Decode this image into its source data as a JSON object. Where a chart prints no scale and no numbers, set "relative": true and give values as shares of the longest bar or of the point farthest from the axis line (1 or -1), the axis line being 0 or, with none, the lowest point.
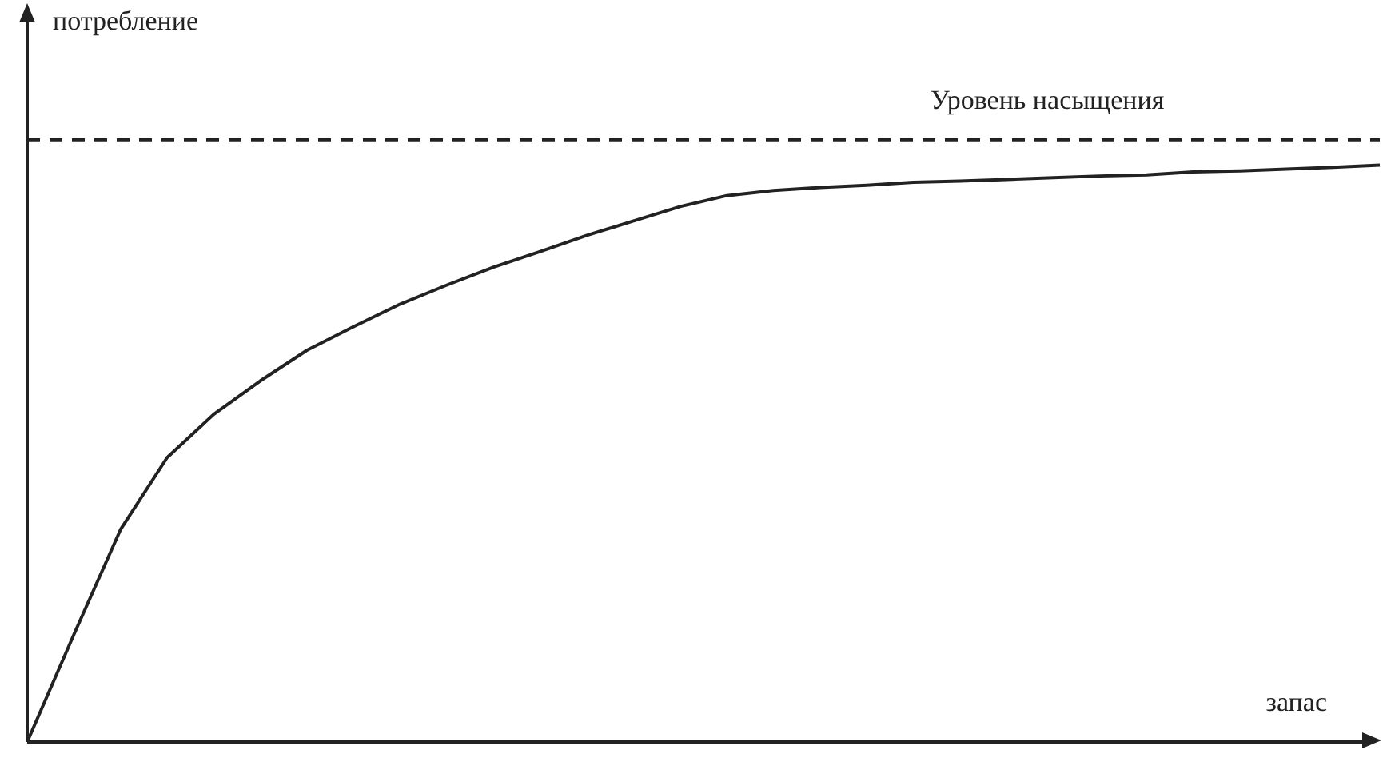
{
  "chart_data": {
    "type": "line",
    "relative": true,
    "xlabel": "запас",
    "ylabel": "потребление",
    "categories": [
      null,
      null,
      null,
      null,
      null,
      null,
      null,
      null,
      null,
      null,
      null,
      null,
      null,
      null,
      null,
      null,
      null,
      null,
      null,
      null,
      null,
      null,
      null,
      null,
      null,
      null,
      null,
      null,
      null,
      null
    ],
    "series": [
      {
        "color": "#222222",
        "values": [
          0,
          0.186,
          0.368,
          0.493,
          0.568,
          0.626,
          0.679,
          0.72,
          0.759,
          0.792,
          0.823,
          0.85,
          0.878,
          0.903,
          0.928,
          0.947,
          0.956,
          0.961,
          0.965,
          0.97,
          0.972,
          0.975,
          0.978,
          0.981,
          0.983,
          0.988,
          0.99,
          0.993,
          0.996,
          1
        ]
      }
    ],
    "ref_lines": [
      {
        "axis": "y",
        "value": 1.044,
        "label": "Уровень насыщения",
        "color": "#222222",
        "line_style": "dashed"
      }
    ],
    "marker": "none",
    "line_style": "solid",
    "legend": false
  }
}
